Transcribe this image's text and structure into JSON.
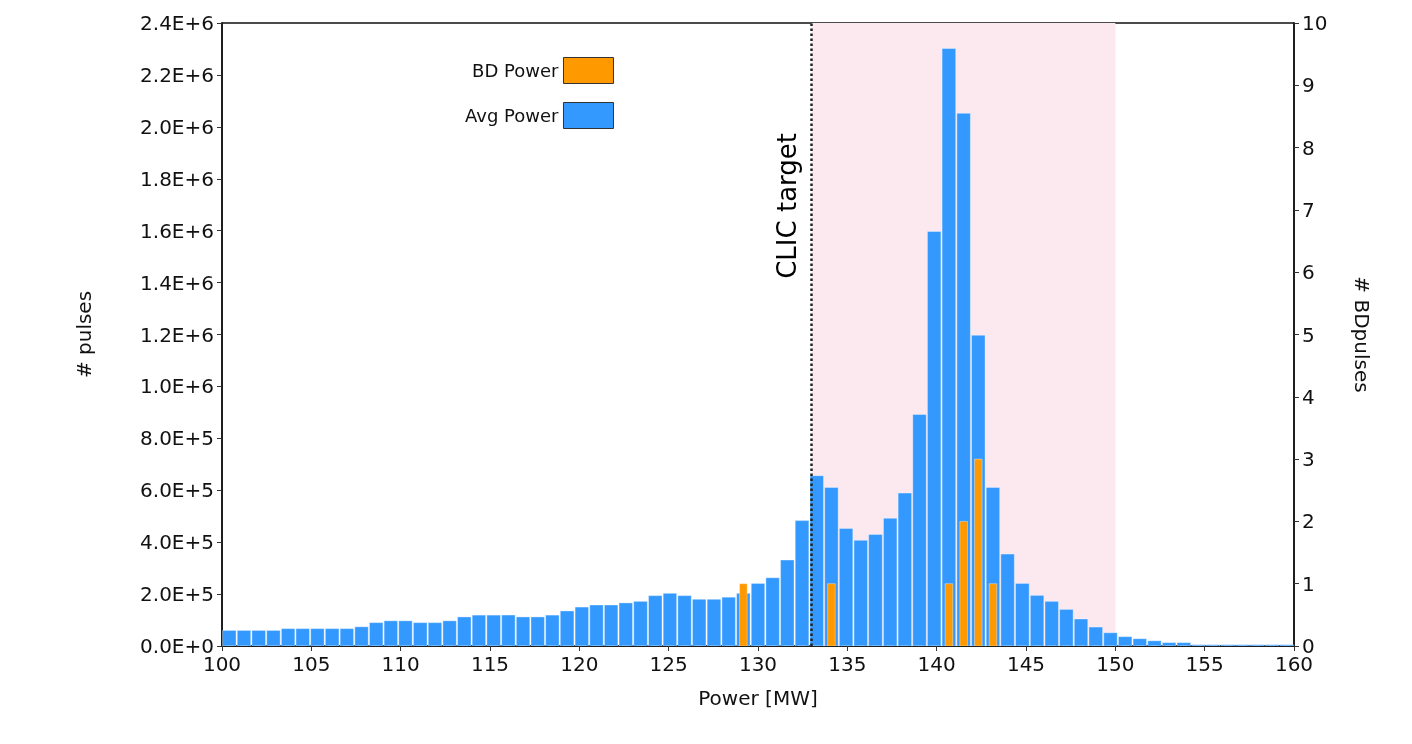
{
  "chart_data": {
    "type": "histogram",
    "xlabel": "Power [MW]",
    "ylabel": "# pulses",
    "y2label": "# BDpulses",
    "bins": [
      100,
      100.82,
      101.64,
      102.47,
      103.29,
      104.11,
      104.93,
      105.75,
      106.58,
      107.4,
      108.22,
      109.04,
      109.86,
      110.68,
      111.51,
      112.33,
      113.15,
      113.97,
      114.79,
      115.62,
      116.44,
      117.26,
      118.08,
      118.9,
      119.73,
      120.55,
      121.37,
      122.19,
      123.01,
      123.84,
      124.66,
      125.48,
      126.3,
      127.12,
      127.95,
      128.77,
      129.59,
      130.41,
      131.23,
      132.05,
      132.88,
      133.7,
      134.52,
      135.34,
      136.16,
      136.99,
      137.81,
      138.63,
      139.45,
      140.27,
      141.1,
      141.92,
      142.74,
      143.56,
      144.38,
      145.21,
      146.03,
      146.85,
      147.67,
      148.49,
      149.32,
      150.14,
      150.96,
      151.78,
      152.6,
      153.42,
      154.25,
      155.07,
      155.89,
      156.71,
      157.53,
      158.36,
      159.18,
      160
    ],
    "series": [
      {
        "name": "BD Power",
        "color": "#ff9900",
        "axis": "y2",
        "values": [
          0,
          0,
          0,
          0,
          0,
          0,
          0,
          0,
          0,
          0,
          0,
          0,
          0,
          0,
          0,
          0,
          0,
          0,
          0,
          0,
          0,
          0,
          0,
          0,
          0,
          0,
          0,
          0,
          0,
          0,
          0,
          0,
          0,
          0,
          0,
          1,
          0,
          0,
          0,
          0,
          0,
          1,
          0,
          0,
          0,
          0,
          0,
          0,
          0,
          1,
          2,
          3,
          1,
          0,
          0,
          0,
          0,
          0,
          0,
          0,
          0,
          0,
          0,
          0,
          0,
          0,
          0,
          0,
          0,
          0,
          0,
          0,
          0
        ]
      },
      {
        "name": "Avg Power",
        "color": "#3399ff",
        "values": [
          60000,
          60000,
          60000,
          60000,
          67000,
          67000,
          67000,
          67000,
          67000,
          74000,
          90000,
          97000,
          97000,
          90000,
          90000,
          97000,
          112000,
          119000,
          119000,
          119000,
          112000,
          112000,
          119000,
          135000,
          150000,
          158000,
          158000,
          166000,
          172000,
          194000,
          203000,
          194000,
          180000,
          180000,
          188000,
          203000,
          241000,
          263000,
          331000,
          483000,
          656000,
          611000,
          453000,
          407000,
          430000,
          492000,
          589000,
          892000,
          1597000,
          2302000,
          2052000,
          1197000,
          611000,
          354000,
          241000,
          195000,
          172000,
          141000,
          104000,
          73000,
          51000,
          36000,
          28000,
          20000,
          13000,
          13000,
          5000,
          5000,
          5000,
          5000,
          5000,
          5000,
          5000
        ]
      }
    ],
    "xlim": [
      100,
      160
    ],
    "xticks": [
      100,
      105,
      110,
      115,
      120,
      125,
      130,
      135,
      140,
      145,
      150,
      155,
      160
    ],
    "ylim": [
      0,
      2400000
    ],
    "yticks": [
      {
        "value": 0,
        "label": "0.0E+0"
      },
      {
        "value": 200000,
        "label": "2.0E+5"
      },
      {
        "value": 400000,
        "label": "4.0E+5"
      },
      {
        "value": 600000,
        "label": "6.0E+5"
      },
      {
        "value": 800000,
        "label": "8.0E+5"
      },
      {
        "value": 1000000,
        "label": "1.0E+6"
      },
      {
        "value": 1200000,
        "label": "1.2E+6"
      },
      {
        "value": 1400000,
        "label": "1.4E+6"
      },
      {
        "value": 1600000,
        "label": "1.6E+6"
      },
      {
        "value": 1800000,
        "label": "1.8E+6"
      },
      {
        "value": 2000000,
        "label": "2.0E+6"
      },
      {
        "value": 2200000,
        "label": "2.2E+6"
      },
      {
        "value": 2400000,
        "label": "2.4E+6"
      }
    ],
    "y2lim": [
      0,
      10
    ],
    "y2ticks": [
      0,
      1,
      2,
      3,
      4,
      5,
      6,
      7,
      8,
      9,
      10
    ],
    "ref_lines": [
      {
        "axis": "x",
        "value": 133,
        "label": "CLIC target",
        "line_style": "dotted",
        "color": "#222222"
      }
    ],
    "bands": [
      {
        "axis": "x",
        "from": 133,
        "to": 150,
        "color": "#fce8ef"
      }
    ],
    "legend": "top left",
    "grid": false
  }
}
